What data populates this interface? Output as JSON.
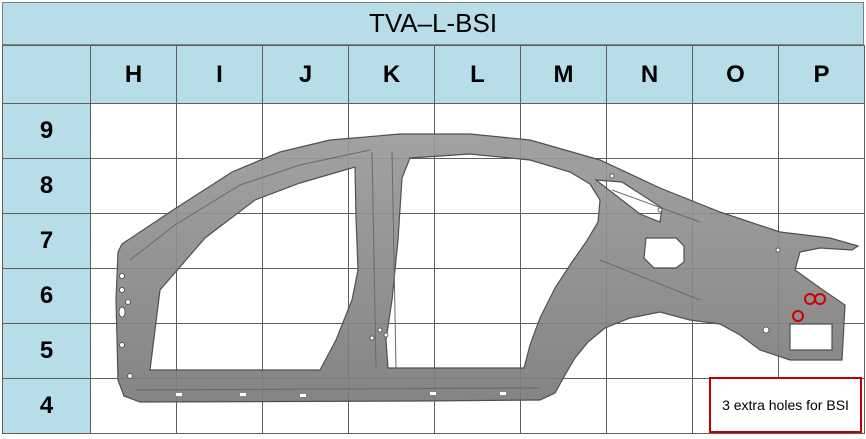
{
  "title": "TVA–L-BSI",
  "columns": [
    "H",
    "I",
    "J",
    "K",
    "L",
    "M",
    "N",
    "O",
    "P"
  ],
  "rows": [
    "9",
    "8",
    "7",
    "6",
    "5",
    "4"
  ],
  "callout_text": "3 extra holes for BSI",
  "colors": {
    "header_fill": "#b6dde8",
    "grid_line": "#5f5f5f",
    "panel_fill": "#8c8c8c",
    "highlight": "#c00000"
  }
}
